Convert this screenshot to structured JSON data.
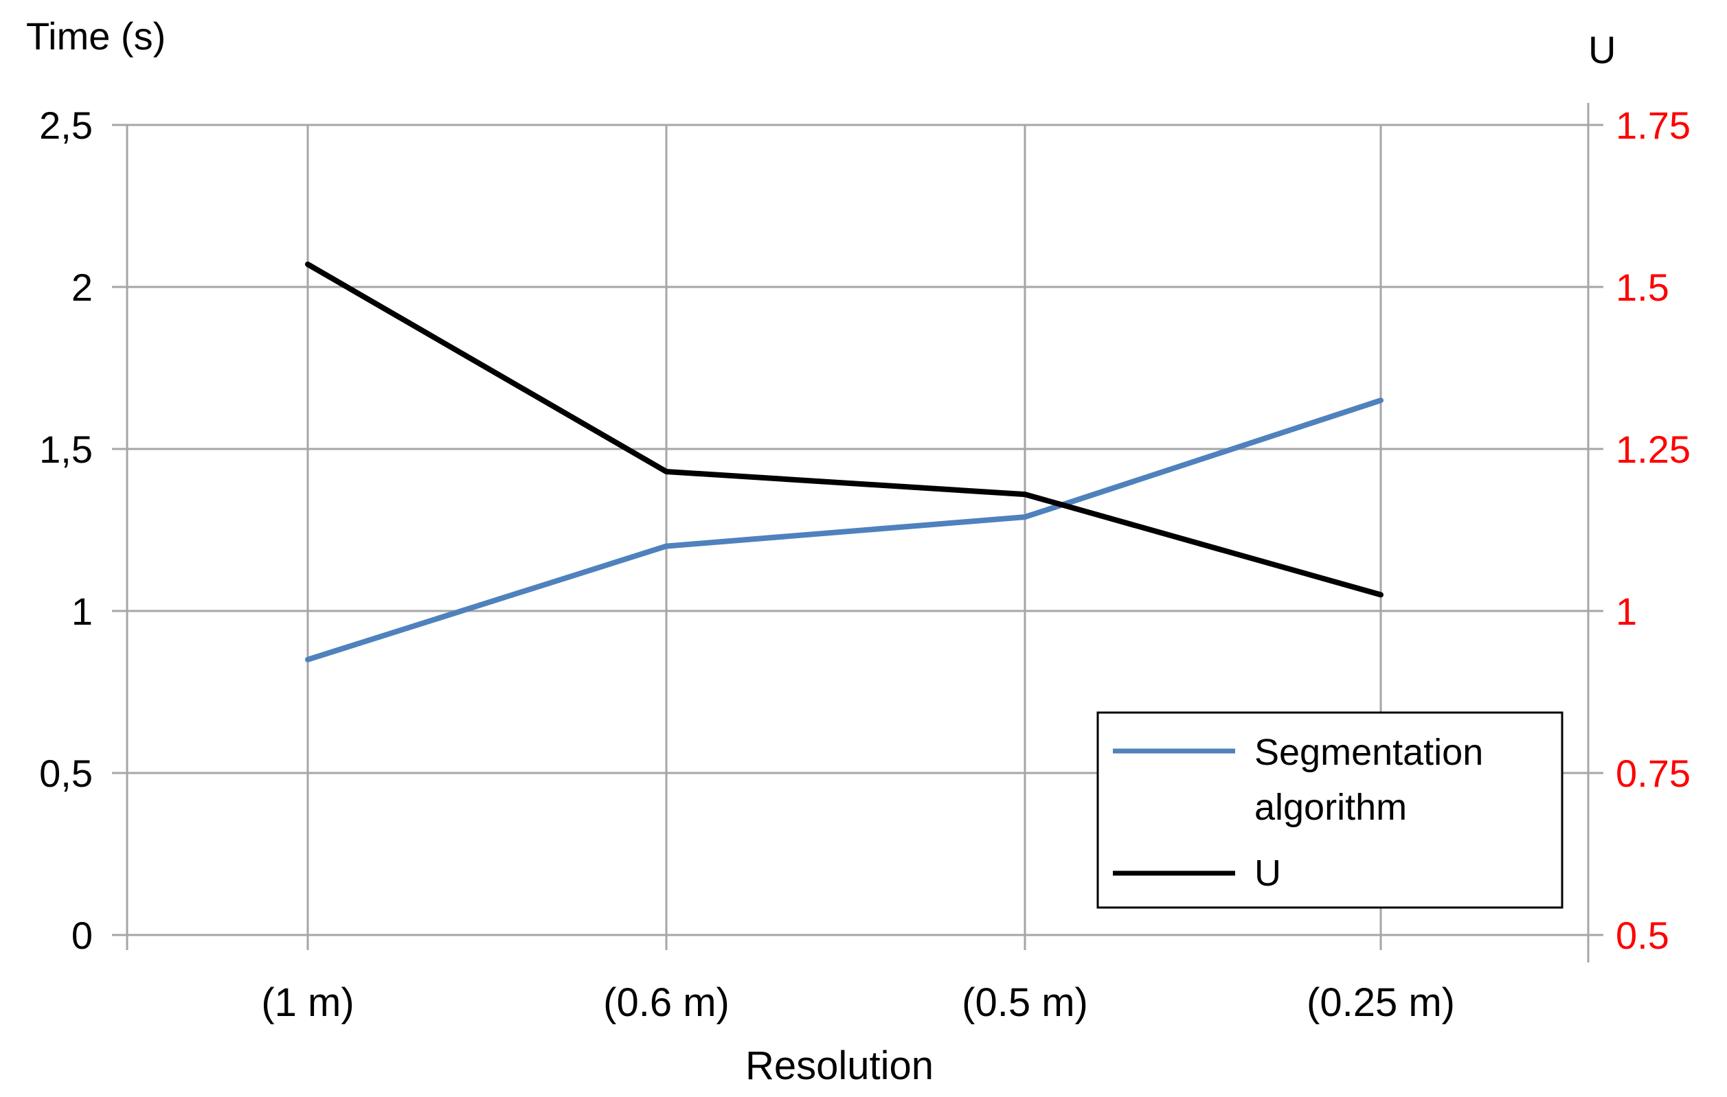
{
  "chart_data": {
    "type": "line",
    "title": "",
    "xlabel": "Resolution",
    "ylabel": "Time (s)",
    "y2label": "U",
    "categories": [
      "(1 m)",
      "(0.6 m)",
      "(0.5 m)",
      "(0.25 m)"
    ],
    "ylim": [
      0,
      2.5
    ],
    "y2lim": [
      0.5,
      1.75
    ],
    "yticks": [
      "0",
      "0,5",
      "1",
      "1,5",
      "2",
      "2,5"
    ],
    "y2ticks": [
      "0.5",
      "0.75",
      "1",
      "1.25",
      "1.5",
      "1.75"
    ],
    "grid": true,
    "legend_position": "bottom-right",
    "series": [
      {
        "name": "Segmentation algorithm",
        "legend_lines": [
          "Segmentation",
          "algorithm"
        ],
        "axis": "left",
        "color": "#4F81BD",
        "values": [
          0.85,
          1.2,
          1.29,
          1.65
        ]
      },
      {
        "name": "U",
        "legend_lines": [
          "U"
        ],
        "axis": "right",
        "color": "#000000",
        "values": [
          1.535,
          1.215,
          1.18,
          1.025
        ]
      }
    ],
    "tick_label_colors": {
      "left": "#000000",
      "right": "#FF0000"
    }
  }
}
